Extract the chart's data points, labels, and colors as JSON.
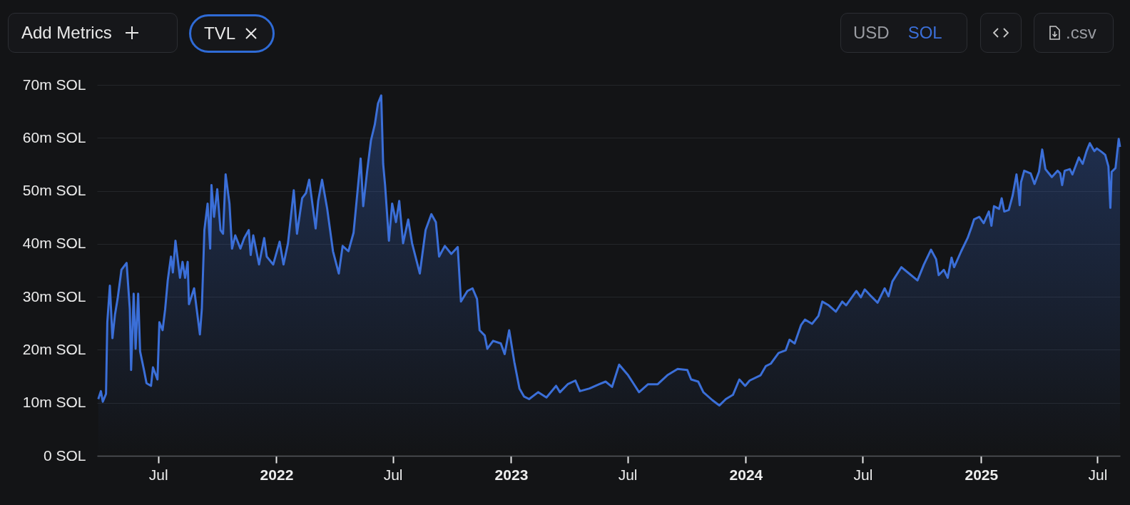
{
  "chart_data": {
    "type": "area",
    "annotations": [
      "Add Metrics",
      "TVL",
      "USD",
      "SOL",
      ".csv"
    ],
    "x": [
      "2021-03-30",
      "2021-04-03",
      "2021-04-06",
      "2021-04-11",
      "2021-04-13",
      "2021-04-17",
      "2021-04-21",
      "2021-04-25",
      "2021-04-29",
      "2021-05-05",
      "2021-05-13",
      "2021-05-18",
      "2021-05-20",
      "2021-05-24",
      "2021-05-27",
      "2021-05-31",
      "2021-06-03",
      "2021-06-09",
      "2021-06-13",
      "2021-06-20",
      "2021-06-23",
      "2021-06-30",
      "2021-07-03",
      "2021-07-08",
      "2021-07-12",
      "2021-07-16",
      "2021-07-21",
      "2021-07-24",
      "2021-07-28",
      "2021-08-04",
      "2021-08-08",
      "2021-08-12",
      "2021-08-16",
      "2021-08-18",
      "2021-08-26",
      "2021-08-30",
      "2021-09-04",
      "2021-09-07",
      "2021-09-11",
      "2021-09-16",
      "2021-09-20",
      "2021-09-22",
      "2021-09-26",
      "2021-10-01",
      "2021-10-06",
      "2021-10-10",
      "2021-10-14",
      "2021-10-20",
      "2021-10-24",
      "2021-10-29",
      "2021-11-06",
      "2021-11-12",
      "2021-11-19",
      "2021-11-22",
      "2021-11-26",
      "2021-12-05",
      "2021-12-13",
      "2021-12-17",
      "2021-12-27",
      "2022-01-06",
      "2022-01-12",
      "2022-01-19",
      "2022-01-28",
      "2022-02-02",
      "2022-02-10",
      "2022-02-16",
      "2022-02-21",
      "2022-03-03",
      "2022-03-07",
      "2022-03-13",
      "2022-03-21",
      "2022-03-30",
      "2022-04-08",
      "2022-04-14",
      "2022-04-23",
      "2022-05-01",
      "2022-05-12",
      "2022-05-16",
      "2022-05-22",
      "2022-05-28",
      "2022-06-03",
      "2022-06-08",
      "2022-06-13",
      "2022-06-16",
      "2022-06-19",
      "2022-06-25",
      "2022-06-30",
      "2022-07-06",
      "2022-07-11",
      "2022-07-17",
      "2022-07-25",
      "2022-07-31",
      "2022-08-12",
      "2022-08-21",
      "2022-08-30",
      "2022-09-06",
      "2022-09-11",
      "2022-09-20",
      "2022-09-30",
      "2022-10-10",
      "2022-10-15",
      "2022-10-25",
      "2022-11-02",
      "2022-11-09",
      "2022-11-13",
      "2022-11-21",
      "2022-11-25",
      "2022-12-04",
      "2022-12-16",
      "2022-12-22",
      "2022-12-29",
      "2023-01-06",
      "2023-01-14",
      "2023-01-21",
      "2023-01-29",
      "2023-02-12",
      "2023-02-25",
      "2023-03-12",
      "2023-03-18",
      "2023-03-30",
      "2023-04-11",
      "2023-04-18",
      "2023-05-03",
      "2023-05-18",
      "2023-05-28",
      "2023-06-07",
      "2023-06-18",
      "2023-07-02",
      "2023-07-10",
      "2023-07-19",
      "2023-08-02",
      "2023-08-17",
      "2023-09-01",
      "2023-09-17",
      "2023-10-02",
      "2023-10-08",
      "2023-10-19",
      "2023-10-27",
      "2023-11-10",
      "2023-11-21",
      "2023-12-01",
      "2023-12-12",
      "2023-12-22",
      "2023-12-31",
      "2024-01-07",
      "2024-01-24",
      "2024-02-01",
      "2024-02-09",
      "2024-02-21",
      "2024-03-03",
      "2024-03-09",
      "2024-03-17",
      "2024-03-27",
      "2024-04-02",
      "2024-04-13",
      "2024-04-23",
      "2024-04-29",
      "2024-05-09",
      "2024-05-20",
      "2024-05-30",
      "2024-06-05",
      "2024-06-21",
      "2024-06-28",
      "2024-07-04",
      "2024-07-14",
      "2024-07-24",
      "2024-08-04",
      "2024-08-10",
      "2024-08-16",
      "2024-08-30",
      "2024-09-09",
      "2024-09-24",
      "2024-10-04",
      "2024-10-15",
      "2024-10-23",
      "2024-10-27",
      "2024-11-04",
      "2024-11-10",
      "2024-11-16",
      "2024-11-20",
      "2024-12-01",
      "2024-12-11",
      "2024-12-17",
      "2024-12-21",
      "2024-12-29",
      "2025-01-05",
      "2025-01-13",
      "2025-01-17",
      "2025-01-21",
      "2025-01-29",
      "2025-02-02",
      "2025-02-06",
      "2025-02-13",
      "2025-02-19",
      "2025-02-25",
      "2025-02-28",
      "2025-03-02",
      "2025-03-04",
      "2025-03-09",
      "2025-03-19",
      "2025-03-25",
      "2025-04-01",
      "2025-04-06",
      "2025-04-11",
      "2025-04-21",
      "2025-04-30",
      "2025-05-04",
      "2025-05-07",
      "2025-05-11",
      "2025-05-19",
      "2025-05-23",
      "2025-06-02",
      "2025-06-08",
      "2025-06-14",
      "2025-06-19",
      "2025-06-26",
      "2025-06-30",
      "2025-07-08",
      "2025-07-13",
      "2025-07-18",
      "2025-07-21",
      "2025-07-23",
      "2025-07-29",
      "2025-08-03",
      "2025-08-05"
    ],
    "series": [
      {
        "color": "#3b6fd8",
        "values": [
          10.7,
          12.2,
          10.2,
          11.7,
          25.2,
          32.1,
          22.2,
          26.7,
          29.6,
          35.1,
          36.4,
          27.7,
          16.2,
          30.6,
          20.2,
          30.6,
          19.7,
          16.2,
          13.7,
          13.2,
          16.7,
          14.4,
          25.2,
          23.7,
          27.7,
          33.1,
          37.6,
          34.6,
          40.6,
          33.6,
          36.6,
          33.6,
          36.6,
          28.6,
          31.6,
          27.7,
          22.9,
          27.7,
          42.6,
          47.6,
          39.1,
          51.1,
          45.1,
          50.3,
          42.6,
          41.9,
          53.1,
          47.6,
          39.1,
          41.6,
          39.1,
          41.1,
          42.6,
          37.9,
          41.6,
          36.1,
          41.1,
          37.6,
          36.1,
          40.4,
          36.1,
          40.1,
          50.1,
          41.9,
          48.6,
          49.6,
          52.1,
          42.9,
          48.1,
          52.1,
          46.6,
          38.6,
          34.4,
          39.6,
          38.6,
          42.1,
          56.1,
          47.1,
          53.6,
          59.5,
          62.5,
          66.5,
          68.0,
          55.1,
          51.1,
          40.6,
          47.6,
          44.1,
          48.1,
          40.1,
          44.6,
          40.1,
          34.4,
          42.6,
          45.6,
          44.1,
          37.6,
          39.6,
          38.1,
          39.4,
          29.1,
          31.1,
          31.6,
          29.6,
          23.7,
          22.7,
          20.2,
          21.7,
          21.2,
          19.2,
          23.7,
          17.7,
          12.7,
          11.2,
          10.7,
          12.0,
          11.0,
          13.2,
          12.0,
          13.5,
          14.2,
          12.2,
          12.7,
          13.5,
          14.0,
          13.0,
          17.2,
          15.2,
          13.7,
          12.0,
          13.5,
          13.5,
          15.2,
          16.4,
          16.2,
          14.4,
          14.0,
          12.0,
          10.5,
          9.5,
          10.7,
          11.5,
          14.4,
          13.2,
          14.2,
          15.2,
          16.9,
          17.4,
          19.4,
          19.9,
          21.9,
          21.2,
          24.7,
          25.7,
          24.9,
          26.4,
          29.1,
          28.4,
          27.2,
          29.1,
          28.4,
          31.1,
          29.9,
          31.4,
          30.1,
          28.9,
          31.6,
          30.1,
          32.9,
          35.6,
          34.6,
          33.1,
          36.1,
          38.9,
          37.1,
          34.1,
          35.1,
          33.6,
          37.4,
          35.6,
          38.6,
          41.1,
          43.1,
          44.6,
          45.1,
          43.9,
          46.1,
          43.4,
          47.1,
          46.6,
          48.6,
          46.1,
          46.4,
          49.1,
          53.1,
          50.1,
          47.3,
          51.6,
          53.8,
          53.3,
          51.3,
          53.6,
          57.8,
          54.1,
          52.6,
          53.8,
          53.3,
          51.1,
          53.8,
          54.1,
          53.1,
          56.3,
          55.1,
          57.5,
          59.0,
          57.5,
          58.0,
          57.3,
          56.8,
          54.6,
          46.8,
          53.6,
          54.3,
          59.8,
          58.3
        ]
      }
    ],
    "xlim": [
      "2021-03-28",
      "2025-08-05"
    ],
    "xticks": [
      {
        "value": "2021-07-01",
        "label": "Jul"
      },
      {
        "value": "2022-01-01",
        "label": "2022"
      },
      {
        "value": "2022-07-01",
        "label": "Jul"
      },
      {
        "value": "2023-01-01",
        "label": "2023"
      },
      {
        "value": "2023-07-01",
        "label": "Jul"
      },
      {
        "value": "2024-01-01",
        "label": "2024"
      },
      {
        "value": "2024-07-01",
        "label": "Jul"
      },
      {
        "value": "2025-01-01",
        "label": "2025"
      },
      {
        "value": "2025-07-01",
        "label": "Jul"
      }
    ],
    "ylim": [
      0,
      70
    ],
    "yticks": [
      {
        "value": 0,
        "label": "0 SOL"
      },
      {
        "value": 10,
        "label": "10m SOL"
      },
      {
        "value": 20,
        "label": "20m SOL"
      },
      {
        "value": 30,
        "label": "30m SOL"
      },
      {
        "value": 40,
        "label": "40m SOL"
      },
      {
        "value": 50,
        "label": "50m SOL"
      },
      {
        "value": 60,
        "label": "60m SOL"
      },
      {
        "value": 70,
        "label": "70m SOL"
      }
    ],
    "grid": "y"
  }
}
